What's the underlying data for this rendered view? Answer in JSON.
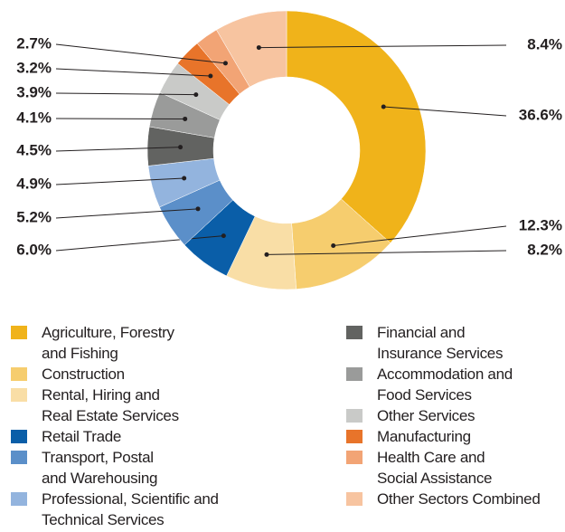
{
  "chart_data": {
    "type": "donut",
    "categories": [
      "Agriculture, Forestry\nand Fishing",
      "Construction",
      "Rental, Hiring and\nReal Estate Services",
      "Retail Trade",
      "Transport, Postal\nand Warehousing",
      "Professional, Scientific and\nTechnical Services",
      "Financial and\nInsurance Services",
      "Accommodation and\nFood Services",
      "Other Services",
      "Manufacturing",
      "Health Care and\nSocial Assistance",
      "Other Sectors Combined"
    ],
    "values": [
      36.6,
      12.3,
      8.2,
      6.0,
      5.2,
      4.9,
      4.5,
      4.1,
      3.9,
      3.2,
      2.7,
      8.4
    ],
    "value_labels": [
      "36.6%",
      "12.3%",
      "8.2%",
      "6.0%",
      "5.2%",
      "4.9%",
      "4.5%",
      "4.1%",
      "3.9%",
      "3.2%",
      "2.7%",
      "8.4%"
    ],
    "colors": [
      "#f0b31a",
      "#f6cd6e",
      "#f9dea6",
      "#0a5ea8",
      "#5b8fc9",
      "#93b4de",
      "#626361",
      "#9a9b9a",
      "#c9cac8",
      "#e8742a",
      "#f2a475",
      "#f7c4a0"
    ]
  }
}
